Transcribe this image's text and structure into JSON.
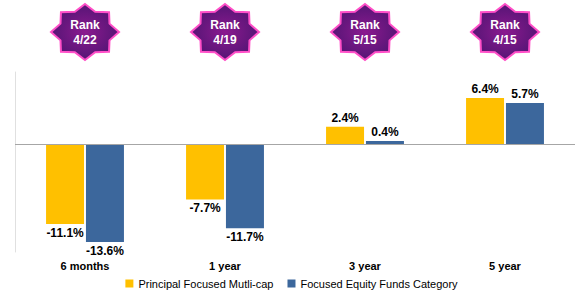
{
  "chart_data": {
    "type": "bar",
    "categories": [
      "6 months",
      "1 year",
      "3 year",
      "5 year"
    ],
    "series": [
      {
        "name": "Principal Focused Mutli-cap",
        "color": "#ffc000",
        "values": [
          -11.1,
          -7.7,
          2.4,
          6.4
        ],
        "value_labels": [
          "-11.1%",
          "-7.7%",
          "2.4%",
          "6.4%"
        ]
      },
      {
        "name": "Focused Equity Funds Category",
        "color": "#3c679c",
        "values": [
          -13.6,
          -11.7,
          0.4,
          5.7
        ],
        "value_labels": [
          "-13.6%",
          "-11.7%",
          "0.4%",
          "5.7%"
        ]
      }
    ],
    "annotations": [
      "Rank 4/22",
      "Rank 4/19",
      "Rank 5/15",
      "Rank 4/15"
    ],
    "ylim": [
      -15,
      10
    ],
    "yticks": [],
    "grid": false,
    "legend": "bottom",
    "data_labels": true,
    "tick_labels": "x"
  }
}
